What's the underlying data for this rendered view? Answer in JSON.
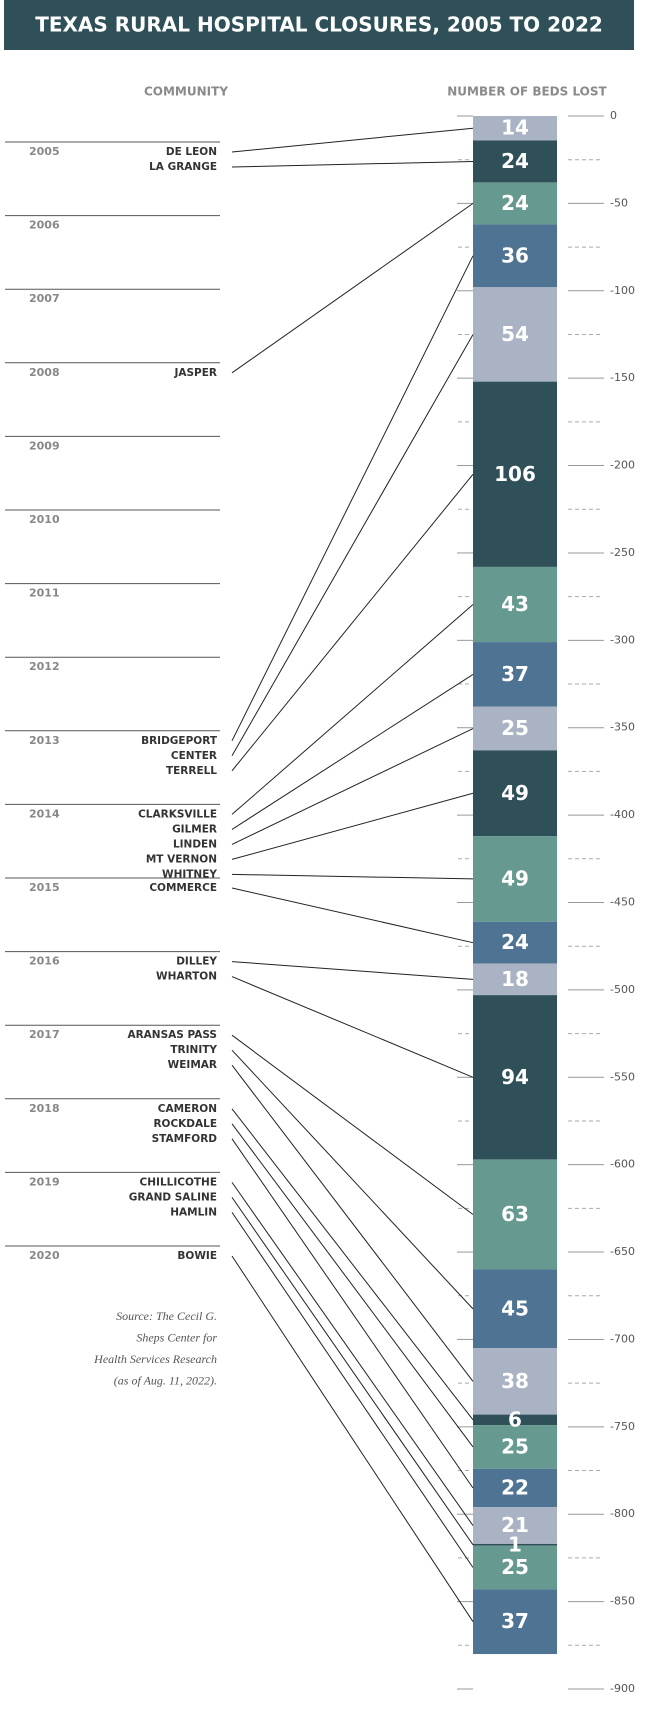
{
  "chart_data": {
    "type": "stacked_column",
    "title": "TEXAS RURAL HOSPITAL CLOSURES, 2005 TO 2022",
    "left_header": "COMMUNITY",
    "right_header": "NUMBER OF BEDS LOST",
    "rows": [
      {
        "year": "2005",
        "communities": [
          "DE LEON",
          "LA GRANGE"
        ]
      },
      {
        "year": "2006",
        "communities": []
      },
      {
        "year": "2007",
        "communities": []
      },
      {
        "year": "2008",
        "communities": [
          "JASPER"
        ]
      },
      {
        "year": "2009",
        "communities": []
      },
      {
        "year": "2010",
        "communities": []
      },
      {
        "year": "2011",
        "communities": []
      },
      {
        "year": "2012",
        "communities": []
      },
      {
        "year": "2013",
        "communities": [
          "BRIDGEPORT",
          "CENTER",
          "TERRELL"
        ]
      },
      {
        "year": "2014",
        "communities": [
          "CLARKSVILLE",
          "GILMER",
          "LINDEN",
          "MT VERNON",
          "WHITNEY"
        ]
      },
      {
        "year": "2015",
        "communities": [
          "COMMERCE"
        ]
      },
      {
        "year": "2016",
        "communities": [
          "DILLEY",
          "WHARTON"
        ]
      },
      {
        "year": "2017",
        "communities": [
          "ARANSAS PASS",
          "TRINITY",
          "WEIMAR"
        ]
      },
      {
        "year": "2018",
        "communities": [
          "CAMERON",
          "ROCKDALE",
          "STAMFORD"
        ]
      },
      {
        "year": "2019",
        "communities": [
          "CHILLICOTHE",
          "GRAND SALINE",
          "HAMLIN"
        ]
      },
      {
        "year": "2020",
        "communities": [
          "BOWIE"
        ]
      }
    ],
    "values": [
      14,
      24,
      24,
      36,
      54,
      106,
      43,
      37,
      25,
      49,
      49,
      24,
      18,
      94,
      63,
      45,
      38,
      6,
      25,
      22,
      21,
      1,
      25,
      37
    ],
    "colors": [
      "#a9b3c3",
      "#2f5058",
      "#66998f",
      "#4f7393"
    ],
    "ylim": [
      0,
      900
    ],
    "yticks": [
      0,
      {
        "value": 50,
        "label": "-50"
      },
      {
        "value": 100,
        "label": "-100"
      },
      {
        "value": 150,
        "label": "-150"
      },
      {
        "value": 200,
        "label": "-200"
      },
      {
        "value": 250,
        "label": "-250"
      },
      {
        "value": 300,
        "label": "-300"
      },
      {
        "value": 350,
        "label": "-350"
      },
      {
        "value": 400,
        "label": "-400"
      },
      {
        "value": 450,
        "label": "-450"
      },
      {
        "value": 500,
        "label": "-500"
      },
      {
        "value": 550,
        "label": "-550"
      },
      {
        "value": 600,
        "label": "-600"
      },
      {
        "value": 650,
        "label": "-650"
      },
      {
        "value": 700,
        "label": "-700"
      },
      {
        "value": 750,
        "label": "-750"
      },
      {
        "value": 800,
        "label": "-800"
      },
      {
        "value": 850,
        "label": "-850"
      },
      {
        "value": 900,
        "label": "-900"
      }
    ],
    "minor_yticks": [
      25,
      75,
      125,
      175,
      225,
      275,
      325,
      375,
      425,
      475,
      525,
      575,
      625,
      675,
      725,
      775,
      825,
      875
    ],
    "source": [
      "Source: The Cecil G.",
      "Sheps Center for",
      "Health Services Research",
      "(as of Aug. 11, 2022)."
    ]
  }
}
